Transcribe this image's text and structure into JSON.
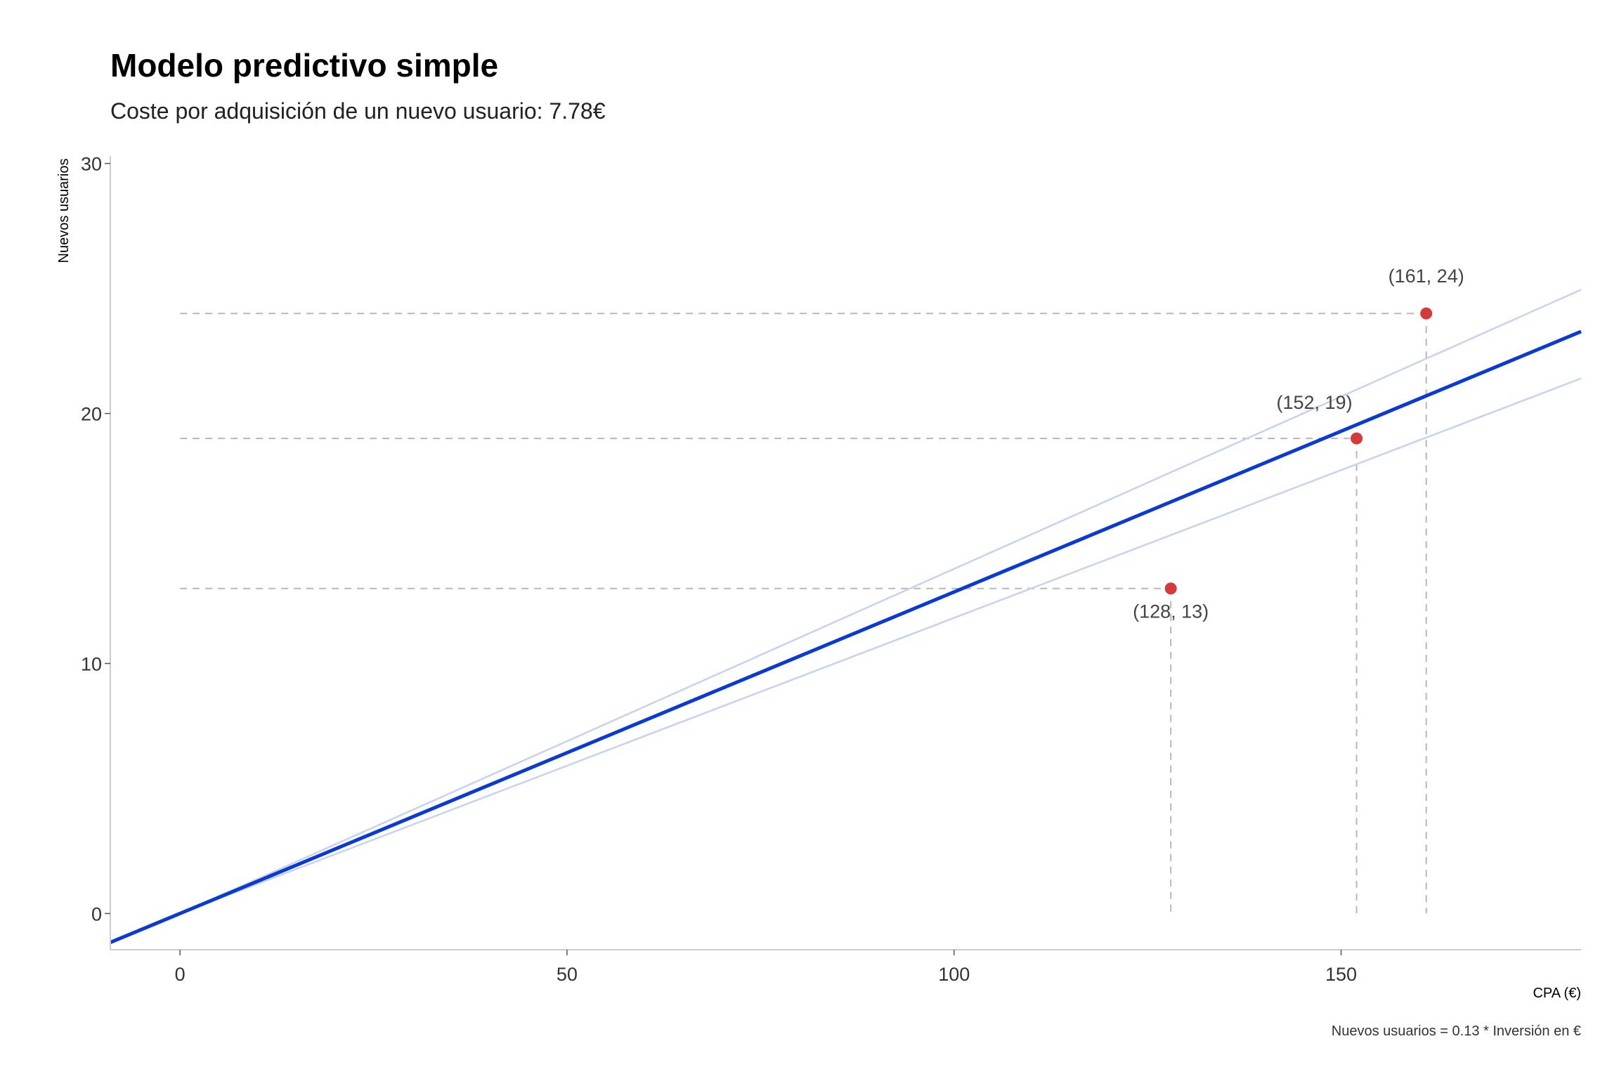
{
  "chart_data": {
    "type": "scatter",
    "title": "Modelo predictivo simple",
    "subtitle": "Coste por adquisición de un nuevo usuario: 7.78€",
    "xlabel": "CPA (€)",
    "ylabel": "Nuevos usuarios",
    "caption": "Nuevos usuarios = 0.13 * Inversión en €",
    "xlim": [
      -9,
      181
    ],
    "ylim": [
      -1.45,
      30.3
    ],
    "x_ticks": [
      0,
      50,
      100,
      150
    ],
    "y_ticks": [
      0,
      10,
      20,
      30
    ],
    "points": [
      {
        "x": 128,
        "y": 13,
        "label": "(128, 13)",
        "label_position": "below"
      },
      {
        "x": 152,
        "y": 19,
        "label": "(152, 19)",
        "label_position": "above-left"
      },
      {
        "x": 161,
        "y": 24,
        "label": "(161, 24)",
        "label_position": "above"
      }
    ],
    "fit_line": {
      "slope": 0.1286,
      "intercept": 0
    },
    "confidence_band": {
      "upper": [
        [
          0,
          0
        ],
        [
          181,
          24.95
        ]
      ],
      "lower": [
        [
          0,
          0
        ],
        [
          181,
          21.4
        ]
      ]
    },
    "grid": false,
    "colors": {
      "points": "#d43a3a",
      "fit_line": "#0a3ad6",
      "band_lines": "#c6d3f0",
      "guide_lines": "#b8b8b8",
      "axis": "#cccccc"
    }
  }
}
